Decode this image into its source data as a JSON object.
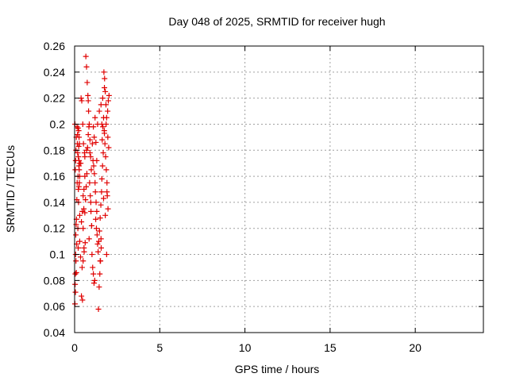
{
  "chart_data": {
    "type": "scatter",
    "title": "Day 048 of 2025, SRMTID for receiver hugh",
    "xlabel": "GPS time / hours",
    "ylabel": "SRMTID / TECUs",
    "xlim": [
      0,
      24
    ],
    "ylim": [
      0.04,
      0.26
    ],
    "xticks": [
      0,
      5,
      10,
      15,
      20
    ],
    "xtick_labels": [
      "0",
      "5",
      "10",
      "15",
      "20"
    ],
    "yticks": [
      0.04,
      0.06,
      0.08,
      0.1,
      0.12,
      0.14,
      0.16,
      0.18,
      0.2,
      0.22,
      0.24,
      0.26
    ],
    "ytick_labels": [
      "0.04",
      "0.06",
      "0.08",
      "0.1",
      "0.12",
      "0.14",
      "0.16",
      "0.18",
      "0.2",
      "0.22",
      "0.24",
      "0.26"
    ],
    "grid": true,
    "marker": "plus",
    "color": "#e00000",
    "series": [
      {
        "x": [
          0.02,
          0.04,
          0.06,
          0.08,
          0.1,
          0.12,
          0.05,
          0.03,
          0.07,
          0.09,
          0.11,
          0.13,
          0.15,
          0.04,
          0.06,
          0.08,
          0.1,
          0.14,
          0.02,
          0.16,
          0.18,
          0.2,
          0.22,
          0.24,
          0.26,
          0.28,
          0.3,
          0.19,
          0.21,
          0.23,
          0.25,
          0.27,
          0.29,
          0.17,
          0.2,
          0.22,
          0.24,
          0.26,
          0.28,
          0.3,
          0.35,
          0.4,
          0.45,
          0.5,
          0.55,
          0.6,
          0.38,
          0.42,
          0.48,
          0.52,
          0.58,
          0.36,
          0.44,
          0.5,
          0.56,
          0.62,
          0.4,
          0.46,
          0.54,
          0.6,
          0.64,
          0.68,
          0.72,
          0.76,
          0.8,
          0.84,
          0.66,
          0.7,
          0.74,
          0.78,
          0.82,
          0.86,
          0.9,
          0.94,
          0.98,
          0.88,
          0.92,
          0.96,
          1.0,
          0.85,
          1.02,
          1.06,
          1.1,
          1.14,
          1.18,
          1.04,
          1.08,
          1.12,
          1.16,
          1.2,
          1.22,
          1.26,
          1.3,
          1.24,
          1.28,
          1.32,
          1.35,
          1.38,
          1.1,
          1.15,
          1.4,
          1.44,
          1.48,
          1.52,
          1.56,
          1.42,
          1.46,
          1.5,
          1.54,
          1.58,
          1.6,
          1.64,
          1.68,
          1.62,
          1.66,
          1.7,
          1.45,
          1.55,
          1.65,
          1.75,
          1.72,
          1.76,
          1.8,
          1.84,
          1.88,
          1.74,
          1.78,
          1.82,
          1.86,
          1.9,
          1.92,
          1.96,
          2.0,
          1.94,
          1.98,
          2.02,
          1.85,
          1.95,
          1.8,
          1.9,
          0.55,
          0.6,
          0.9,
          0.95,
          1.0,
          1.5,
          1.55,
          1.6,
          1.2,
          1.3,
          0.3,
          0.25,
          0.7,
          1.7,
          1.75,
          1.35,
          1.25,
          0.8,
          0.5,
          1.88
        ],
        "y": [
          0.062,
          0.085,
          0.1,
          0.095,
          0.086,
          0.108,
          0.071,
          0.077,
          0.115,
          0.123,
          0.127,
          0.142,
          0.155,
          0.165,
          0.172,
          0.18,
          0.19,
          0.198,
          0.2,
          0.185,
          0.178,
          0.16,
          0.15,
          0.195,
          0.172,
          0.185,
          0.13,
          0.12,
          0.105,
          0.14,
          0.152,
          0.165,
          0.17,
          0.192,
          0.197,
          0.175,
          0.183,
          0.19,
          0.155,
          0.11,
          0.098,
          0.125,
          0.133,
          0.145,
          0.15,
          0.16,
          0.22,
          0.218,
          0.2,
          0.185,
          0.178,
          0.17,
          0.09,
          0.095,
          0.102,
          0.109,
          0.068,
          0.065,
          0.135,
          0.175,
          0.142,
          0.152,
          0.162,
          0.182,
          0.192,
          0.198,
          0.252,
          0.244,
          0.232,
          0.222,
          0.21,
          0.2,
          0.188,
          0.175,
          0.165,
          0.155,
          0.145,
          0.133,
          0.122,
          0.112,
          0.1,
          0.09,
          0.085,
          0.078,
          0.08,
          0.185,
          0.172,
          0.168,
          0.162,
          0.155,
          0.148,
          0.14,
          0.133,
          0.127,
          0.12,
          0.115,
          0.108,
          0.102,
          0.198,
          0.19,
          0.058,
          0.075,
          0.085,
          0.095,
          0.105,
          0.11,
          0.118,
          0.128,
          0.138,
          0.148,
          0.158,
          0.168,
          0.178,
          0.188,
          0.198,
          0.205,
          0.21,
          0.215,
          0.22,
          0.228,
          0.24,
          0.235,
          0.225,
          0.215,
          0.205,
          0.195,
          0.185,
          0.175,
          0.165,
          0.155,
          0.145,
          0.135,
          0.182,
          0.21,
          0.218,
          0.222,
          0.2,
          0.19,
          0.13,
          0.148,
          0.105,
          0.132,
          0.178,
          0.14,
          0.122,
          0.095,
          0.112,
          0.2,
          0.205,
          0.172,
          0.16,
          0.168,
          0.18,
          0.143,
          0.193,
          0.2,
          0.186,
          0.218,
          0.12,
          0.1
        ]
      }
    ]
  }
}
